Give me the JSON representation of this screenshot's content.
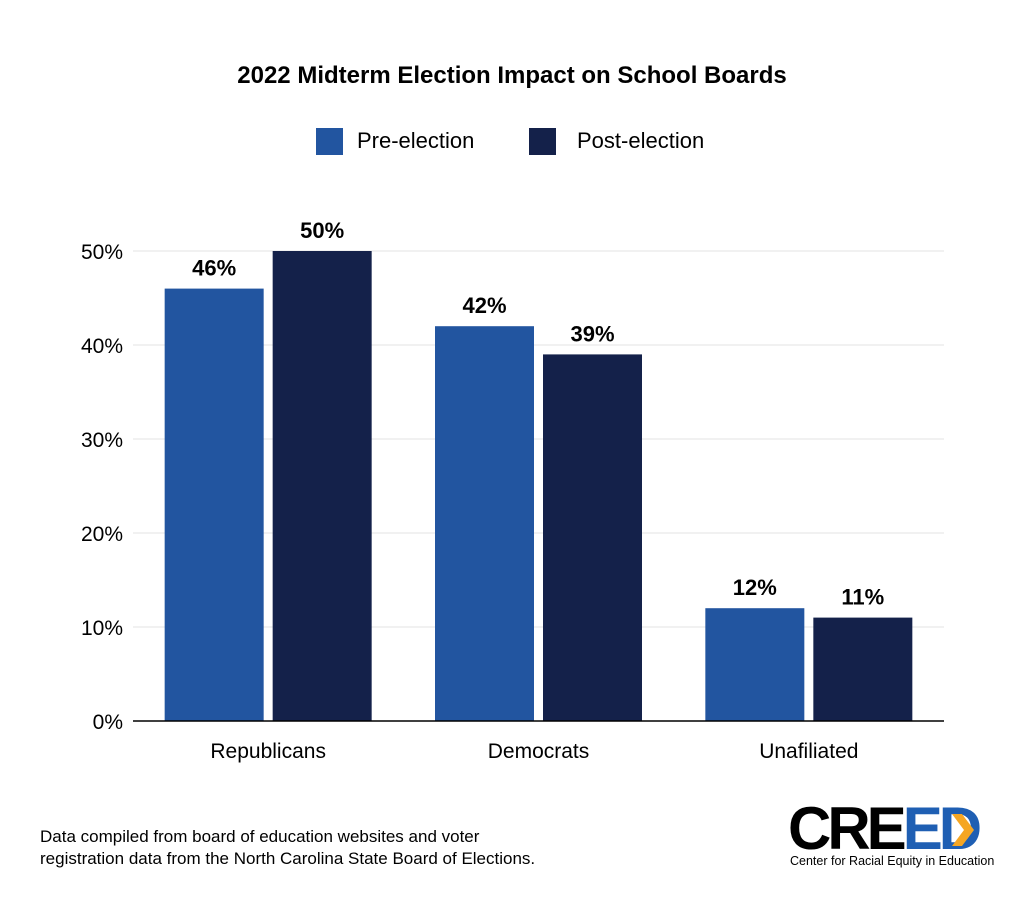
{
  "chart_data": {
    "type": "bar",
    "title": "2022 Midterm Election Impact on School Boards",
    "categories": [
      "Republicans",
      "Democrats",
      "Unafiliated"
    ],
    "series": [
      {
        "name": "Pre-election",
        "color": "#2255a0",
        "values": [
          46,
          42,
          12
        ],
        "labels": [
          "46%",
          "42%",
          "12%"
        ]
      },
      {
        "name": "Post-election",
        "color": "#14214a",
        "values": [
          50,
          39,
          11
        ],
        "labels": [
          "50%",
          "39%",
          "11%"
        ]
      }
    ],
    "ylim": [
      0,
      50
    ],
    "yticks": [
      0,
      10,
      20,
      30,
      40,
      50
    ],
    "ytick_labels": [
      "0%",
      "10%",
      "20%",
      "30%",
      "40%",
      "50%"
    ],
    "grid": true,
    "legend": "top-center"
  },
  "footer": {
    "source_line1": "Data compiled from board of education websites and voter",
    "source_line2": "registration data from the North Carolina State Board of Elections."
  },
  "logo": {
    "text_main": "CRE",
    "text_accent": "ED",
    "tagline": "Center for Racial Equity in Education",
    "accent_color": "#1f5fb3",
    "arrow_color": "#f5a623"
  }
}
